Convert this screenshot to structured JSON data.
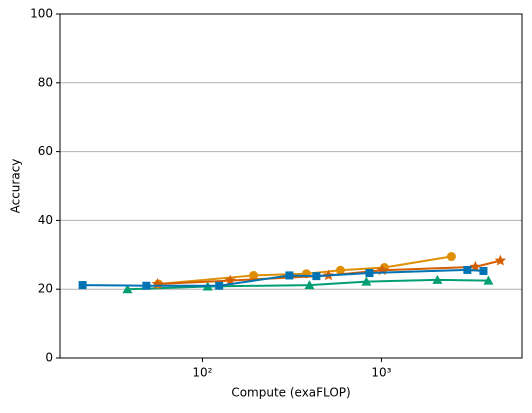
{
  "chart_data": {
    "type": "line",
    "xlabel": "Compute (exaFLOP)",
    "ylabel": "Accuracy",
    "xscale": "log",
    "xlim": [
      16,
      6100
    ],
    "xticks": [
      {
        "value": 100,
        "label": "10²"
      },
      {
        "value": 1000,
        "label": "10³"
      }
    ],
    "ylim": [
      0,
      100
    ],
    "yticks": [
      0,
      20,
      40,
      60,
      80,
      100
    ],
    "grid": true,
    "series": [
      {
        "color": "#029e73",
        "marker": "triangle",
        "x": [
          38.1,
          107,
          396,
          824,
          2054,
          3960
        ],
        "values": [
          20,
          20.8,
          21.2,
          22.2,
          22.7,
          22.5
        ]
      },
      {
        "color": "#de8f05",
        "marker": "circle",
        "x": [
          56.8,
          193,
          381,
          590,
          1040,
          2460
        ],
        "values": [
          21.5,
          24,
          24.5,
          25.5,
          26.3,
          29.5
        ]
      },
      {
        "color": "#d55e00",
        "marker": "star",
        "x": [
          56,
          143,
          506,
          1010,
          3350,
          4620
        ],
        "values": [
          21.5,
          22.5,
          24,
          25.5,
          26.5,
          28.3
        ]
      },
      {
        "color": "#0173b2",
        "marker": "square",
        "x": [
          21.4,
          48.6,
          124,
          306,
          433,
          857,
          3020,
          3715
        ],
        "values": [
          21.2,
          21,
          21,
          24,
          23.8,
          24.7,
          25.6,
          25.3
        ]
      }
    ]
  }
}
